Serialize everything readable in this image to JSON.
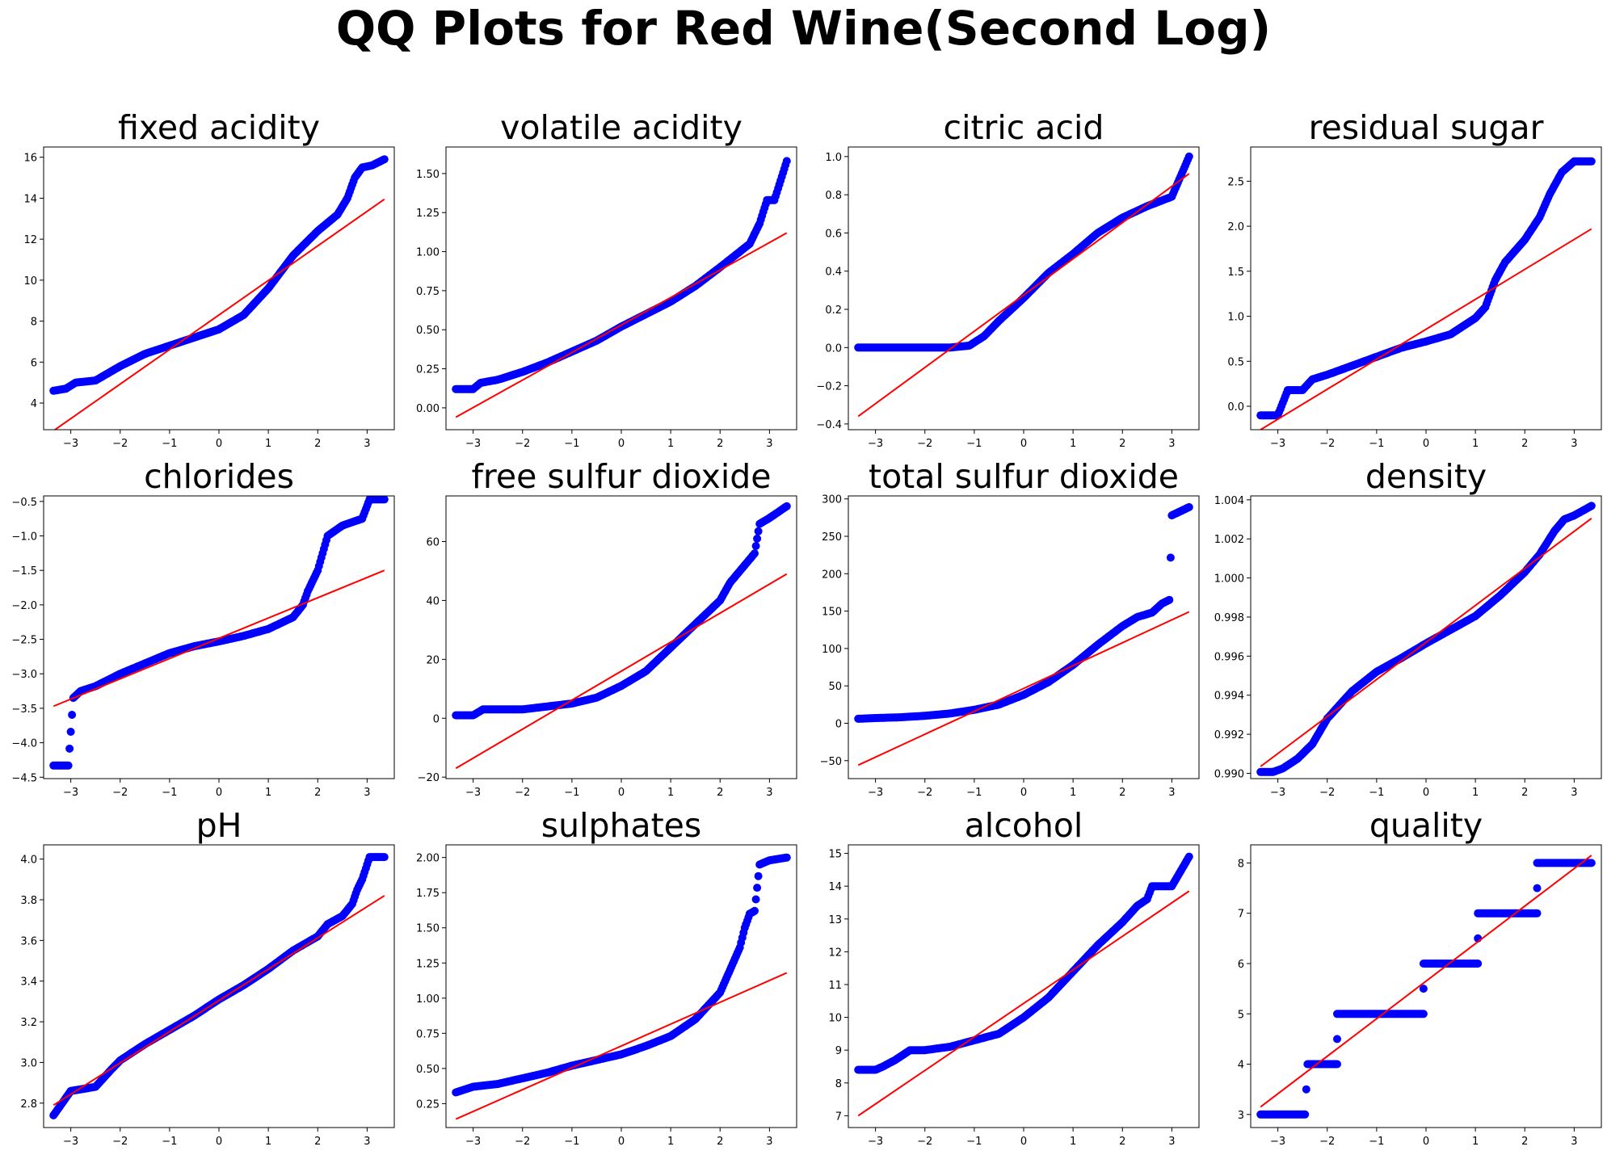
{
  "figure_title": "QQ Plots for Red Wine(Second Log)",
  "colors": {
    "points": "#0000ff",
    "line": "#ff0000",
    "axes": "#000000",
    "background": "#ffffff"
  },
  "chart_data": [
    {
      "type": "scatter",
      "title": "fixed acidity",
      "xlim": [
        -3.55,
        3.55
      ],
      "ylim": [
        2.7,
        16.5
      ],
      "xticks": [
        -3,
        -2,
        -1,
        0,
        1,
        2,
        3
      ],
      "yticks": [
        4,
        6,
        8,
        10,
        12,
        14,
        16
      ],
      "fit_line": {
        "x": [
          -3.35,
          3.35
        ],
        "y": [
          2.65,
          13.95
        ]
      },
      "quantiles": [
        [
          -3.35,
          4.6
        ],
        [
          -3.1,
          4.7
        ],
        [
          -2.9,
          5.0
        ],
        [
          -2.5,
          5.1
        ],
        [
          -2.0,
          5.8
        ],
        [
          -1.5,
          6.4
        ],
        [
          -1.0,
          6.8
        ],
        [
          -0.5,
          7.2
        ],
        [
          0.0,
          7.6
        ],
        [
          0.5,
          8.3
        ],
        [
          1.0,
          9.6
        ],
        [
          1.5,
          11.2
        ],
        [
          2.0,
          12.4
        ],
        [
          2.4,
          13.2
        ],
        [
          2.6,
          14.0
        ],
        [
          2.75,
          15.0
        ],
        [
          2.9,
          15.5
        ],
        [
          3.1,
          15.6
        ],
        [
          3.35,
          15.9
        ]
      ]
    },
    {
      "type": "scatter",
      "title": "volatile acidity",
      "xlim": [
        -3.55,
        3.55
      ],
      "ylim": [
        -0.14,
        1.67
      ],
      "xticks": [
        -3,
        -2,
        -1,
        0,
        1,
        2,
        3
      ],
      "yticks": [
        0.0,
        0.25,
        0.5,
        0.75,
        1.0,
        1.25,
        1.5
      ],
      "yformat": 2,
      "fit_line": {
        "x": [
          -3.35,
          3.35
        ],
        "y": [
          -0.06,
          1.12
        ]
      },
      "quantiles": [
        [
          -3.35,
          0.12
        ],
        [
          -3.0,
          0.12
        ],
        [
          -2.85,
          0.16
        ],
        [
          -2.5,
          0.18
        ],
        [
          -2.0,
          0.23
        ],
        [
          -1.5,
          0.29
        ],
        [
          -1.0,
          0.36
        ],
        [
          -0.5,
          0.43
        ],
        [
          0.0,
          0.52
        ],
        [
          0.5,
          0.6
        ],
        [
          1.0,
          0.68
        ],
        [
          1.5,
          0.78
        ],
        [
          2.0,
          0.9
        ],
        [
          2.4,
          1.0
        ],
        [
          2.6,
          1.05
        ],
        [
          2.8,
          1.18
        ],
        [
          2.95,
          1.33
        ],
        [
          3.1,
          1.33
        ],
        [
          3.35,
          1.58
        ]
      ]
    },
    {
      "type": "scatter",
      "title": "citric acid",
      "xlim": [
        -3.55,
        3.55
      ],
      "ylim": [
        -0.43,
        1.05
      ],
      "xticks": [
        -3,
        -2,
        -1,
        0,
        1,
        2,
        3
      ],
      "yticks": [
        -0.4,
        -0.2,
        0.0,
        0.2,
        0.4,
        0.6,
        0.8,
        1.0
      ],
      "yformat": 1,
      "fit_line": {
        "x": [
          -3.35,
          3.35
        ],
        "y": [
          -0.36,
          0.91
        ]
      },
      "quantiles": [
        [
          -3.35,
          0.0
        ],
        [
          -3.0,
          0.0
        ],
        [
          -2.5,
          0.0
        ],
        [
          -2.0,
          0.0
        ],
        [
          -1.5,
          0.0
        ],
        [
          -1.1,
          0.01
        ],
        [
          -0.8,
          0.06
        ],
        [
          -0.5,
          0.14
        ],
        [
          0.0,
          0.26
        ],
        [
          0.5,
          0.39
        ],
        [
          1.0,
          0.49
        ],
        [
          1.5,
          0.6
        ],
        [
          2.0,
          0.68
        ],
        [
          2.5,
          0.74
        ],
        [
          3.0,
          0.79
        ],
        [
          3.35,
          1.0
        ]
      ]
    },
    {
      "type": "scatter",
      "title": "residual sugar",
      "xlim": [
        -3.55,
        3.55
      ],
      "ylim": [
        -0.26,
        2.88
      ],
      "xticks": [
        -3,
        -2,
        -1,
        0,
        1,
        2,
        3
      ],
      "yticks": [
        0.0,
        0.5,
        1.0,
        1.5,
        2.0,
        2.5
      ],
      "yformat": 1,
      "fit_line": {
        "x": [
          -3.35,
          3.35
        ],
        "y": [
          -0.26,
          1.97
        ]
      },
      "quantiles": [
        [
          -3.35,
          -0.1
        ],
        [
          -3.0,
          -0.1
        ],
        [
          -2.8,
          0.18
        ],
        [
          -2.5,
          0.18
        ],
        [
          -2.3,
          0.3
        ],
        [
          -2.0,
          0.35
        ],
        [
          -1.5,
          0.45
        ],
        [
          -1.0,
          0.55
        ],
        [
          -0.5,
          0.65
        ],
        [
          0.0,
          0.72
        ],
        [
          0.5,
          0.8
        ],
        [
          1.0,
          0.98
        ],
        [
          1.2,
          1.1
        ],
        [
          1.4,
          1.4
        ],
        [
          1.6,
          1.6
        ],
        [
          2.0,
          1.85
        ],
        [
          2.3,
          2.1
        ],
        [
          2.5,
          2.35
        ],
        [
          2.75,
          2.6
        ],
        [
          3.0,
          2.72
        ],
        [
          3.35,
          2.72
        ]
      ]
    },
    {
      "type": "scatter",
      "title": "chlorides",
      "xlim": [
        -3.55,
        3.55
      ],
      "ylim": [
        -4.52,
        -0.42
      ],
      "xticks": [
        -3,
        -2,
        -1,
        0,
        1,
        2,
        3
      ],
      "yticks": [
        -4.5,
        -4.0,
        -3.5,
        -3.0,
        -2.5,
        -2.0,
        -1.5,
        -1.0,
        -0.5
      ],
      "yformat": 1,
      "fit_line": {
        "x": [
          -3.35,
          3.35
        ],
        "y": [
          -3.47,
          -1.5
        ]
      },
      "quantiles": [
        [
          -3.35,
          -4.33
        ],
        [
          -3.05,
          -4.33
        ],
        [
          -2.95,
          -3.35
        ],
        [
          -2.8,
          -3.25
        ],
        [
          -2.5,
          -3.18
        ],
        [
          -2.0,
          -3.0
        ],
        [
          -1.5,
          -2.85
        ],
        [
          -1.0,
          -2.7
        ],
        [
          -0.5,
          -2.6
        ],
        [
          0.0,
          -2.53
        ],
        [
          0.5,
          -2.45
        ],
        [
          1.0,
          -2.35
        ],
        [
          1.5,
          -2.18
        ],
        [
          1.7,
          -2.0
        ],
        [
          1.8,
          -1.8
        ],
        [
          2.0,
          -1.5
        ],
        [
          2.2,
          -1.0
        ],
        [
          2.5,
          -0.85
        ],
        [
          2.9,
          -0.75
        ],
        [
          3.05,
          -0.47
        ],
        [
          3.35,
          -0.47
        ]
      ]
    },
    {
      "type": "scatter",
      "title": "free sulfur dioxide",
      "xlim": [
        -3.55,
        3.55
      ],
      "ylim": [
        -20.5,
        75.5
      ],
      "xticks": [
        -3,
        -2,
        -1,
        0,
        1,
        2,
        3
      ],
      "yticks": [
        -20,
        0,
        20,
        40,
        60
      ],
      "fit_line": {
        "x": [
          -3.35,
          3.35
        ],
        "y": [
          -17,
          49
        ]
      },
      "quantiles": [
        [
          -3.35,
          1
        ],
        [
          -3.0,
          1
        ],
        [
          -2.8,
          3
        ],
        [
          -2.0,
          3
        ],
        [
          -1.5,
          4
        ],
        [
          -1.0,
          5
        ],
        [
          -0.5,
          7
        ],
        [
          0.0,
          11
        ],
        [
          0.5,
          16
        ],
        [
          1.0,
          24
        ],
        [
          1.5,
          32
        ],
        [
          2.0,
          40
        ],
        [
          2.2,
          46
        ],
        [
          2.5,
          52
        ],
        [
          2.7,
          56
        ],
        [
          2.8,
          66
        ],
        [
          3.0,
          68
        ],
        [
          3.35,
          72
        ]
      ]
    },
    {
      "type": "scatter",
      "title": "total sulfur dioxide",
      "xlim": [
        -3.55,
        3.55
      ],
      "ylim": [
        -74,
        304
      ],
      "xticks": [
        -3,
        -2,
        -1,
        0,
        1,
        2,
        3
      ],
      "yticks": [
        -50,
        0,
        50,
        100,
        150,
        200,
        250,
        300
      ],
      "fit_line": {
        "x": [
          -3.35,
          3.35
        ],
        "y": [
          -56,
          149
        ]
      },
      "quantiles": [
        [
          -3.35,
          6
        ],
        [
          -3.0,
          7
        ],
        [
          -2.5,
          8
        ],
        [
          -2.0,
          10
        ],
        [
          -1.5,
          13
        ],
        [
          -1.0,
          18
        ],
        [
          -0.5,
          25
        ],
        [
          0.0,
          38
        ],
        [
          0.5,
          55
        ],
        [
          1.0,
          78
        ],
        [
          1.5,
          105
        ],
        [
          2.0,
          130
        ],
        [
          2.3,
          142
        ],
        [
          2.6,
          148
        ],
        [
          2.8,
          160
        ],
        [
          2.95,
          165
        ],
        [
          3.0,
          278
        ],
        [
          3.35,
          289
        ]
      ]
    },
    {
      "type": "scatter",
      "title": "density",
      "xlim": [
        -3.55,
        3.55
      ],
      "ylim": [
        0.98973,
        1.0042
      ],
      "xticks": [
        -3,
        -2,
        -1,
        0,
        1,
        2,
        3
      ],
      "yticks": [
        0.99,
        0.992,
        0.994,
        0.996,
        0.998,
        1.0,
        1.002,
        1.004
      ],
      "yformat": 3,
      "fit_line": {
        "x": [
          -3.35,
          3.35
        ],
        "y": [
          0.99035,
          1.00305
        ]
      },
      "quantiles": [
        [
          -3.35,
          0.99007
        ],
        [
          -3.1,
          0.99007
        ],
        [
          -2.9,
          0.99025
        ],
        [
          -2.6,
          0.99075
        ],
        [
          -2.3,
          0.9915
        ],
        [
          -2.0,
          0.9928
        ],
        [
          -1.5,
          0.9942
        ],
        [
          -1.0,
          0.9952
        ],
        [
          -0.5,
          0.9959
        ],
        [
          0.0,
          0.99665
        ],
        [
          0.5,
          0.99735
        ],
        [
          1.0,
          0.99805
        ],
        [
          1.5,
          0.9991
        ],
        [
          2.0,
          1.0003
        ],
        [
          2.3,
          1.0012
        ],
        [
          2.6,
          1.0024
        ],
        [
          2.8,
          1.003
        ],
        [
          3.0,
          1.0032
        ],
        [
          3.35,
          1.00369
        ]
      ]
    },
    {
      "type": "scatter",
      "title": "pH",
      "xlim": [
        -3.55,
        3.55
      ],
      "ylim": [
        2.68,
        4.07
      ],
      "xticks": [
        -3,
        -2,
        -1,
        0,
        1,
        2,
        3
      ],
      "yticks": [
        2.8,
        3.0,
        3.2,
        3.4,
        3.6,
        3.8,
        4.0
      ],
      "yformat": 1,
      "fit_line": {
        "x": [
          -3.35,
          3.35
        ],
        "y": [
          2.79,
          3.82
        ]
      },
      "quantiles": [
        [
          -3.35,
          2.74
        ],
        [
          -3.0,
          2.86
        ],
        [
          -2.5,
          2.88
        ],
        [
          -2.2,
          2.96
        ],
        [
          -2.0,
          3.01
        ],
        [
          -1.5,
          3.09
        ],
        [
          -1.0,
          3.16
        ],
        [
          -0.5,
          3.23
        ],
        [
          0.0,
          3.31
        ],
        [
          0.5,
          3.38
        ],
        [
          1.0,
          3.46
        ],
        [
          1.5,
          3.55
        ],
        [
          2.0,
          3.62
        ],
        [
          2.2,
          3.68
        ],
        [
          2.5,
          3.72
        ],
        [
          2.7,
          3.78
        ],
        [
          2.8,
          3.85
        ],
        [
          2.9,
          3.9
        ],
        [
          3.05,
          4.01
        ],
        [
          3.35,
          4.01
        ]
      ]
    },
    {
      "type": "scatter",
      "title": "sulphates",
      "xlim": [
        -3.55,
        3.55
      ],
      "ylim": [
        0.08,
        2.09
      ],
      "xticks": [
        -3,
        -2,
        -1,
        0,
        1,
        2,
        3
      ],
      "yticks": [
        0.25,
        0.5,
        0.75,
        1.0,
        1.25,
        1.5,
        1.75,
        2.0
      ],
      "yformat": 2,
      "fit_line": {
        "x": [
          -3.35,
          3.35
        ],
        "y": [
          0.14,
          1.18
        ]
      },
      "quantiles": [
        [
          -3.35,
          0.33
        ],
        [
          -3.0,
          0.37
        ],
        [
          -2.5,
          0.39
        ],
        [
          -2.0,
          0.43
        ],
        [
          -1.5,
          0.47
        ],
        [
          -1.0,
          0.52
        ],
        [
          -0.5,
          0.56
        ],
        [
          0.0,
          0.6
        ],
        [
          0.5,
          0.66
        ],
        [
          1.0,
          0.73
        ],
        [
          1.5,
          0.85
        ],
        [
          2.0,
          1.04
        ],
        [
          2.2,
          1.2
        ],
        [
          2.4,
          1.36
        ],
        [
          2.5,
          1.5
        ],
        [
          2.6,
          1.6
        ],
        [
          2.7,
          1.62
        ],
        [
          2.8,
          1.95
        ],
        [
          3.0,
          1.98
        ],
        [
          3.35,
          2.0
        ]
      ]
    },
    {
      "type": "scatter",
      "title": "alcohol",
      "xlim": [
        -3.55,
        3.55
      ],
      "ylim": [
        6.64,
        15.26
      ],
      "xticks": [
        -3,
        -2,
        -1,
        0,
        1,
        2,
        3
      ],
      "yticks": [
        7,
        8,
        9,
        10,
        11,
        12,
        13,
        14,
        15
      ],
      "fit_line": {
        "x": [
          -3.35,
          3.35
        ],
        "y": [
          7.0,
          13.85
        ]
      },
      "quantiles": [
        [
          -3.35,
          8.4
        ],
        [
          -3.0,
          8.4
        ],
        [
          -2.85,
          8.5
        ],
        [
          -2.6,
          8.7
        ],
        [
          -2.3,
          9.0
        ],
        [
          -2.0,
          9.0
        ],
        [
          -1.5,
          9.1
        ],
        [
          -1.0,
          9.3
        ],
        [
          -0.5,
          9.5
        ],
        [
          0.0,
          10.0
        ],
        [
          0.5,
          10.6
        ],
        [
          1.0,
          11.4
        ],
        [
          1.5,
          12.2
        ],
        [
          2.0,
          12.9
        ],
        [
          2.3,
          13.4
        ],
        [
          2.5,
          13.6
        ],
        [
          2.6,
          14.0
        ],
        [
          3.0,
          14.0
        ],
        [
          3.35,
          14.9
        ]
      ]
    },
    {
      "type": "scatter",
      "title": "quality",
      "xlim": [
        -3.55,
        3.55
      ],
      "ylim": [
        2.74,
        8.36
      ],
      "xticks": [
        -3,
        -2,
        -1,
        0,
        1,
        2,
        3
      ],
      "yticks": [
        3,
        4,
        5,
        6,
        7,
        8
      ],
      "fit_line": {
        "x": [
          -3.35,
          3.35
        ],
        "y": [
          3.15,
          8.15
        ]
      },
      "quantiles": [
        [
          -3.35,
          3
        ],
        [
          -2.45,
          3
        ],
        [
          -2.4,
          4
        ],
        [
          -1.8,
          4
        ],
        [
          -1.8,
          5
        ],
        [
          -0.05,
          5
        ],
        [
          -0.05,
          6
        ],
        [
          1.05,
          6
        ],
        [
          1.05,
          7
        ],
        [
          2.25,
          7
        ],
        [
          2.25,
          8
        ],
        [
          3.35,
          8
        ]
      ]
    }
  ]
}
